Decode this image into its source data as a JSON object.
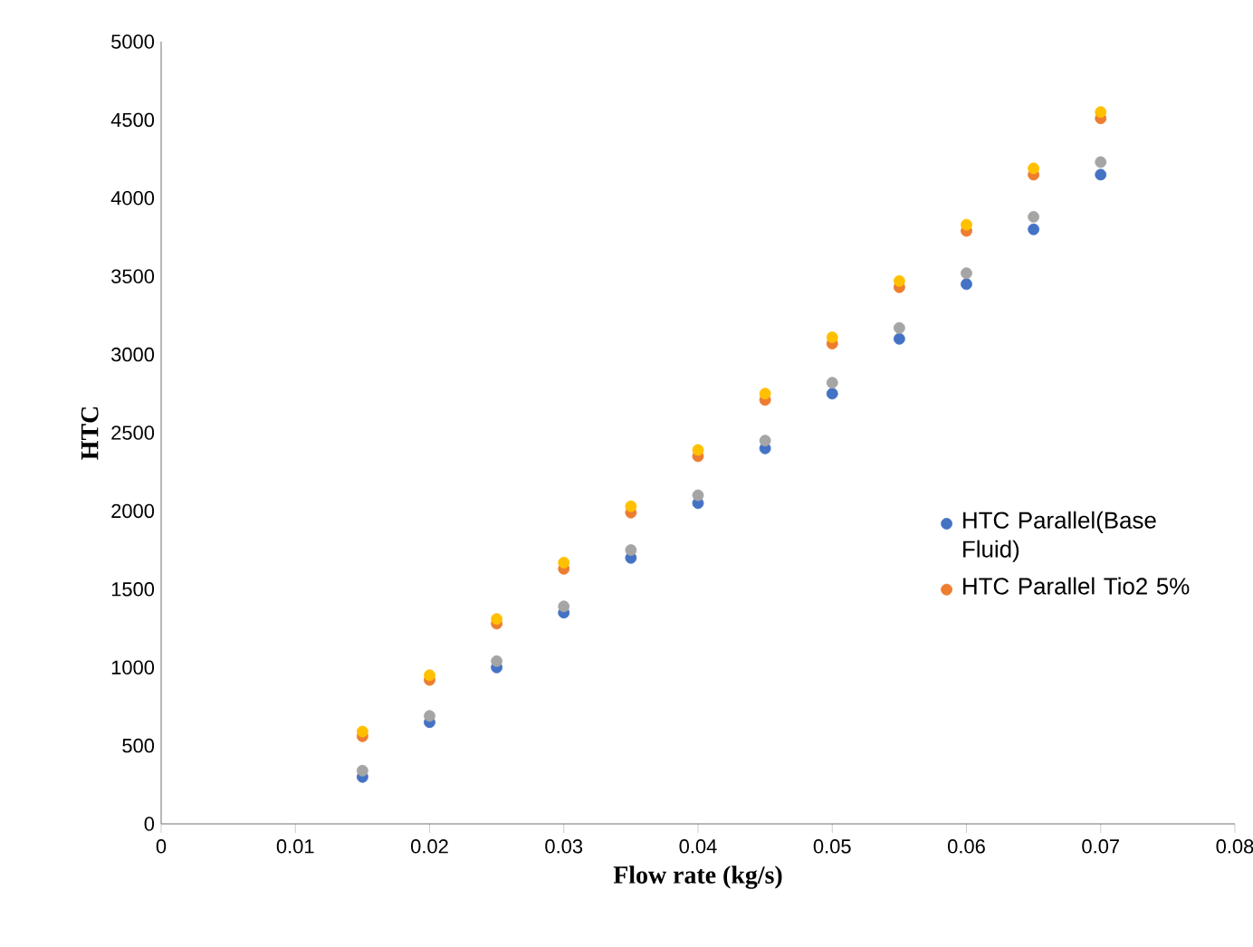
{
  "chart_data": {
    "type": "scatter",
    "xlabel": "Flow rate (kg/s)",
    "ylabel": "HTC",
    "x": [
      0.015,
      0.02,
      0.025,
      0.03,
      0.035,
      0.04,
      0.045,
      0.05,
      0.055,
      0.06,
      0.065,
      0.07
    ],
    "series": [
      {
        "name": "HTC Parallel(Base Fluid)",
        "color": "#4472c4",
        "values": [
          300,
          650,
          1000,
          1350,
          1700,
          2050,
          2400,
          2750,
          3100,
          3450,
          3800,
          4150
        ]
      },
      {
        "color": "#a5a5a5",
        "values": [
          340,
          690,
          1040,
          1390,
          1750,
          2100,
          2450,
          2820,
          3170,
          3520,
          3880,
          4230
        ]
      },
      {
        "name": "HTC Parallel Tio2 5%",
        "color": "#ed7d31",
        "values": [
          560,
          920,
          1280,
          1630,
          1990,
          2350,
          2710,
          3070,
          3430,
          3790,
          4150,
          4510
        ]
      },
      {
        "color": "#ffc000",
        "values": [
          590,
          950,
          1310,
          1670,
          2030,
          2390,
          2750,
          3110,
          3470,
          3830,
          4190,
          4550
        ]
      }
    ],
    "xlim": [
      0,
      0.08
    ],
    "xticks": [
      0,
      0.01,
      0.02,
      0.03,
      0.04,
      0.05,
      0.06,
      0.07,
      0.08
    ],
    "ylim": [
      0,
      5000
    ],
    "yticks": [
      0,
      500,
      1000,
      1500,
      2000,
      2500,
      3000,
      3500,
      4000,
      4500,
      5000
    ],
    "grid": false,
    "legend": "right",
    "marker": "circle"
  }
}
